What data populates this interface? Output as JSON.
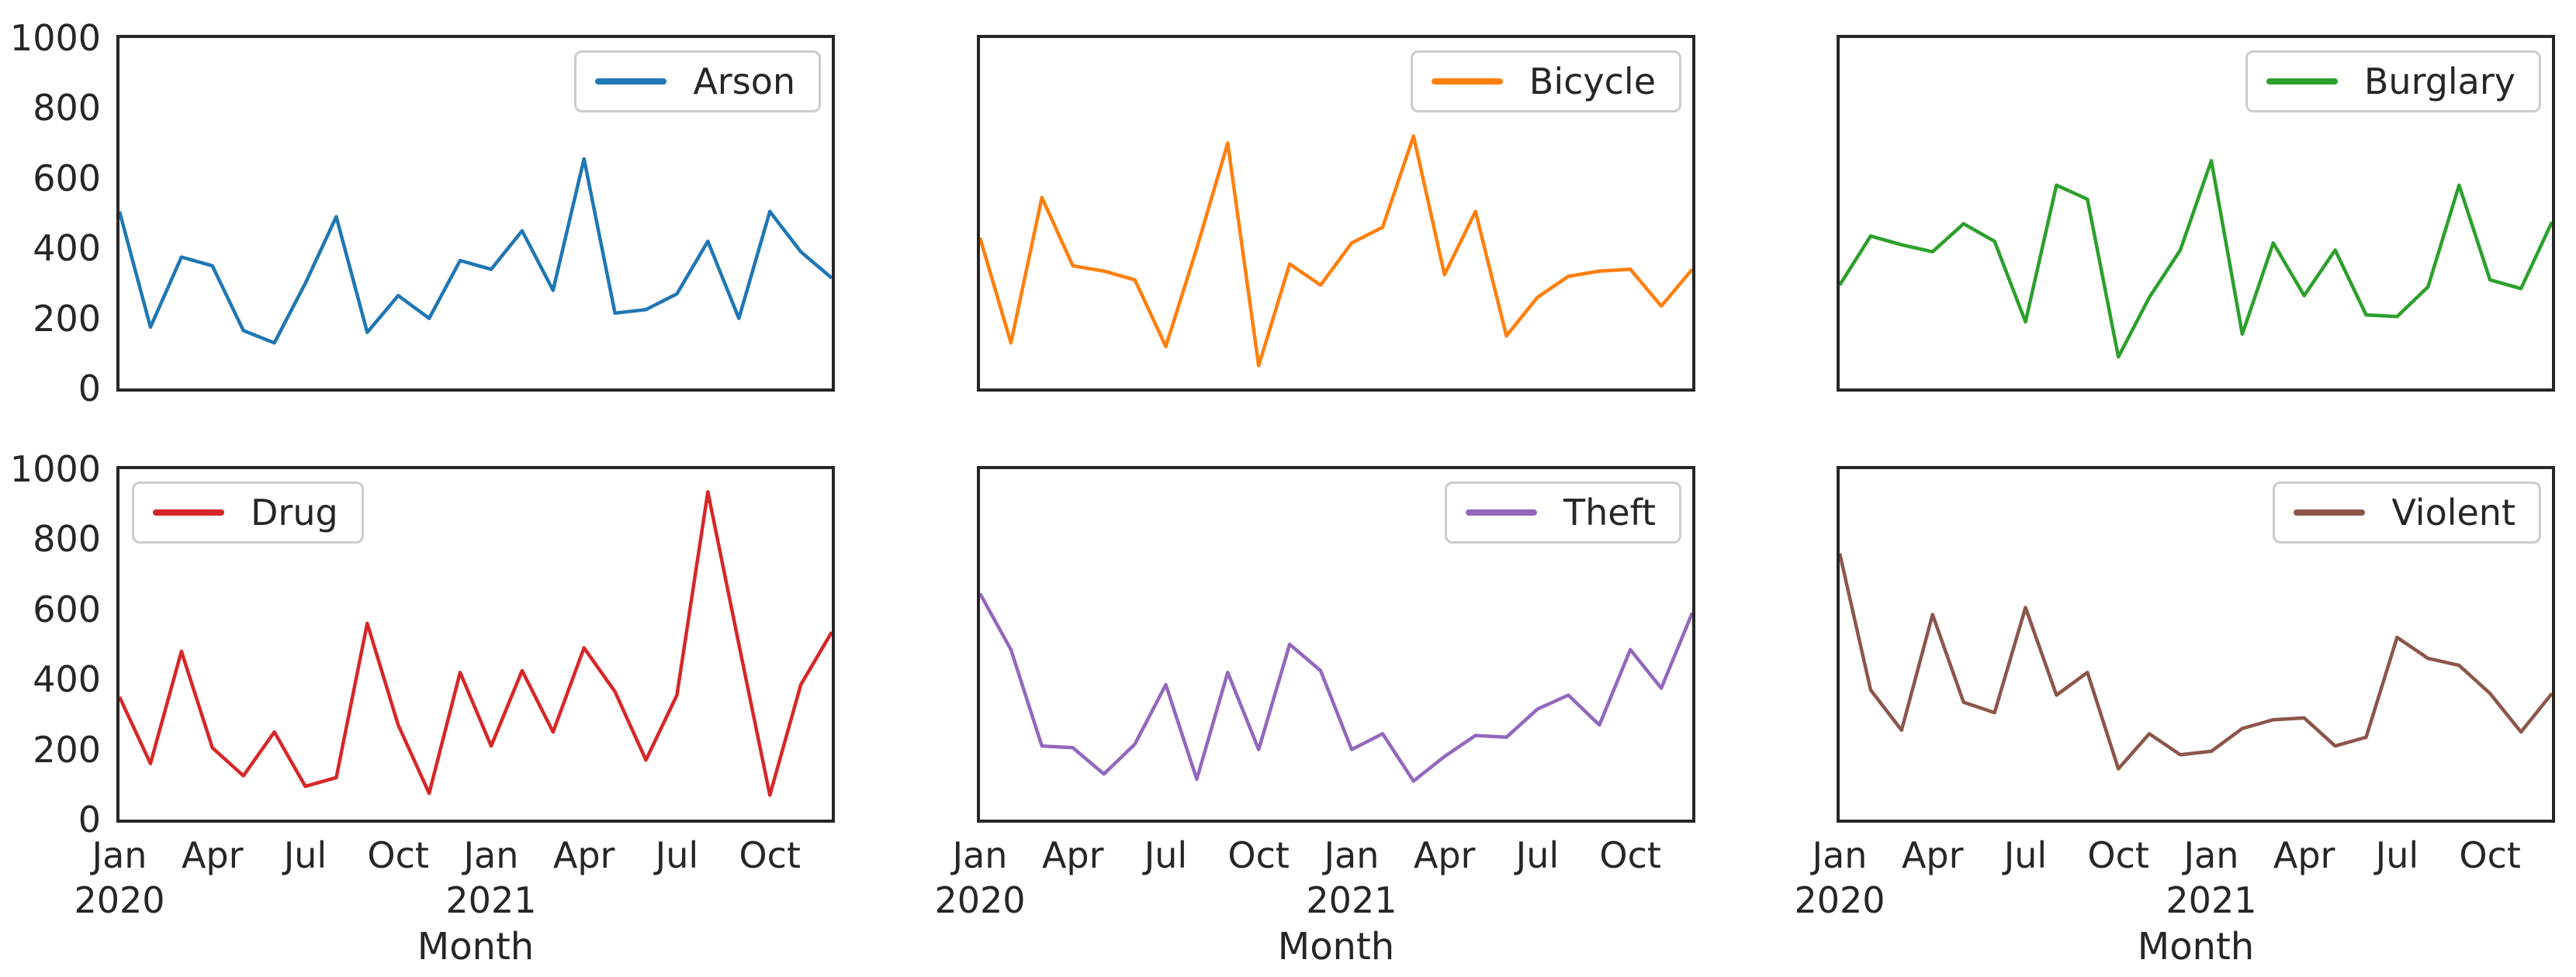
{
  "figure": {
    "background": "#ffffff",
    "axis_color": "#262626",
    "text_color": "#262626",
    "xlabel": "Month",
    "ylim": [
      0,
      1000
    ],
    "y_ticks": [
      0,
      200,
      400,
      600,
      800,
      1000
    ],
    "x_ticks": [
      {
        "line1": "Jan",
        "line2": "2020",
        "index": 0
      },
      {
        "line1": "Apr",
        "line2": "",
        "index": 3
      },
      {
        "line1": "Jul",
        "line2": "",
        "index": 6
      },
      {
        "line1": "Oct",
        "line2": "",
        "index": 9
      },
      {
        "line1": "Jan",
        "line2": "2021",
        "index": 12
      },
      {
        "line1": "Apr",
        "line2": "",
        "index": 15
      },
      {
        "line1": "Jul",
        "line2": "",
        "index": 18
      },
      {
        "line1": "Oct",
        "line2": "",
        "index": 21
      }
    ],
    "x_categories": [
      "2020-01",
      "2020-02",
      "2020-03",
      "2020-04",
      "2020-05",
      "2020-06",
      "2020-07",
      "2020-08",
      "2020-09",
      "2020-10",
      "2020-11",
      "2020-12",
      "2021-01",
      "2021-02",
      "2021-03",
      "2021-04",
      "2021-05",
      "2021-06",
      "2021-07",
      "2021-08",
      "2021-09",
      "2021-10",
      "2021-11",
      "2021-12"
    ]
  },
  "chart_data": [
    {
      "type": "line",
      "name": "Arson",
      "color": "#1f77b4",
      "legend_loc": "upper-right",
      "values": [
        505,
        175,
        375,
        350,
        165,
        130,
        300,
        490,
        160,
        265,
        200,
        365,
        340,
        450,
        280,
        655,
        215,
        225,
        270,
        420,
        200,
        505,
        390,
        315
      ]
    },
    {
      "type": "line",
      "name": "Bicycle",
      "color": "#ff7f0e",
      "legend_loc": "upper-right",
      "values": [
        430,
        130,
        545,
        350,
        335,
        310,
        120,
        400,
        700,
        65,
        355,
        295,
        415,
        460,
        720,
        325,
        505,
        150,
        260,
        320,
        335,
        340,
        235,
        340
      ]
    },
    {
      "type": "line",
      "name": "Burglary",
      "color": "#2ca02c",
      "legend_loc": "upper-right",
      "values": [
        295,
        435,
        410,
        390,
        470,
        420,
        190,
        580,
        540,
        90,
        260,
        395,
        650,
        155,
        415,
        265,
        395,
        210,
        205,
        290,
        580,
        310,
        285,
        475
      ]
    },
    {
      "type": "line",
      "name": "Drug",
      "color": "#d62728",
      "legend_loc": "upper-left",
      "values": [
        350,
        160,
        480,
        205,
        125,
        250,
        95,
        120,
        560,
        270,
        75,
        420,
        210,
        425,
        250,
        490,
        365,
        170,
        355,
        935,
        500,
        70,
        385,
        535
      ]
    },
    {
      "type": "line",
      "name": "Theft",
      "color": "#9467bd",
      "legend_loc": "upper-right",
      "values": [
        645,
        485,
        210,
        205,
        130,
        215,
        385,
        115,
        420,
        200,
        500,
        425,
        200,
        245,
        110,
        180,
        240,
        235,
        315,
        355,
        270,
        485,
        375,
        590
      ]
    },
    {
      "type": "line",
      "name": "Violent",
      "color": "#8c564b",
      "legend_loc": "upper-right",
      "values": [
        760,
        370,
        255,
        585,
        335,
        305,
        605,
        355,
        420,
        145,
        245,
        185,
        195,
        260,
        285,
        290,
        210,
        235,
        520,
        460,
        440,
        360,
        250,
        360
      ]
    }
  ]
}
